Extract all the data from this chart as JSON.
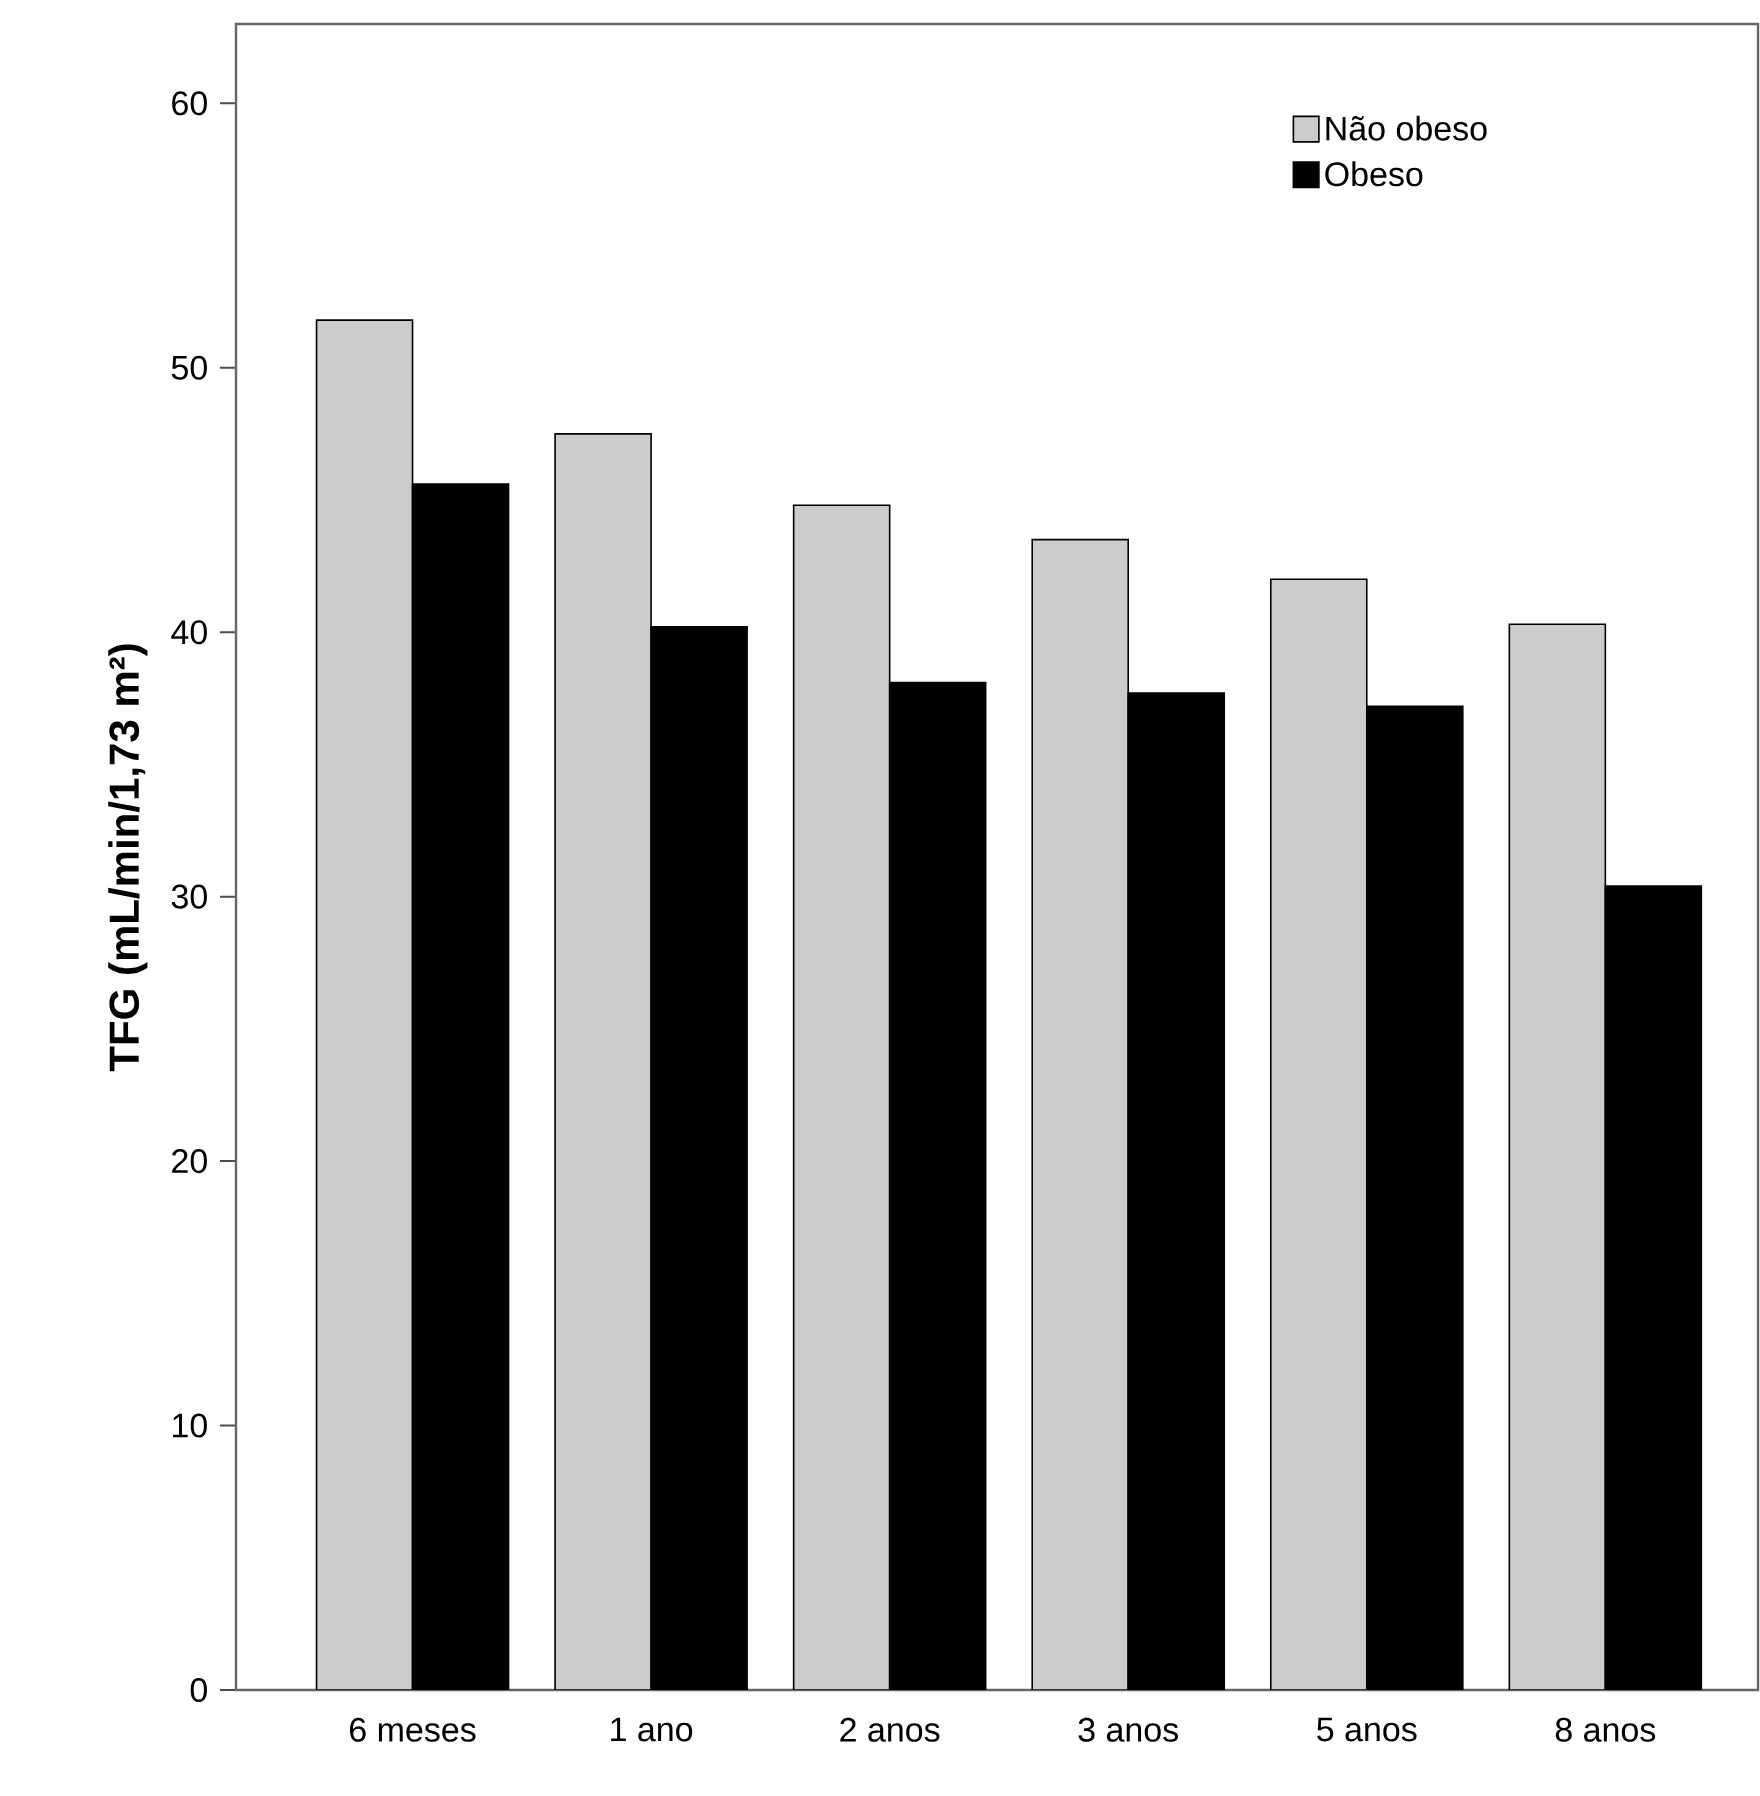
{
  "chart_data": {
    "type": "bar",
    "ylabel": "TFG (mL/min/1,73 m²)",
    "categories": [
      "6 meses",
      "1 ano",
      "2 anos",
      "3 anos",
      "5 anos",
      "8 anos"
    ],
    "series": [
      {
        "name": "Não obeso",
        "color": "#cccccc",
        "values": [
          51.8,
          47.5,
          44.8,
          43.5,
          42.0,
          40.3
        ]
      },
      {
        "name": "Obeso",
        "color": "#000000",
        "values": [
          45.6,
          40.2,
          38.1,
          37.7,
          37.2,
          30.4
        ]
      }
    ],
    "ylim": [
      0,
      63
    ],
    "yticks": [
      0,
      10,
      20,
      30,
      40,
      50,
      60
    ],
    "legend": "top right",
    "grid": false
  }
}
